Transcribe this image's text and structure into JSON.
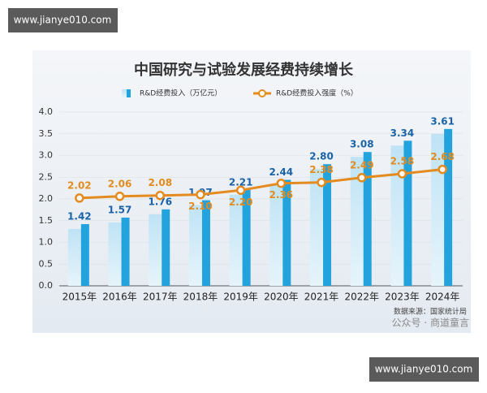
{
  "watermark_top": "www.jianye010.com",
  "watermark_bottom": "www.jianye010.com",
  "chart_data": {
    "type": "bar-line",
    "title": "中国研究与试验发展经费持续增长",
    "categories": [
      "2015年",
      "2016年",
      "2017年",
      "2018年",
      "2019年",
      "2020年",
      "2021年",
      "2022年",
      "2023年",
      "2024年"
    ],
    "series": [
      {
        "name": "R&D经费投入（万亿元）",
        "type": "bar",
        "color": "#22a3dd",
        "values": [
          1.42,
          1.57,
          1.76,
          1.97,
          2.21,
          2.44,
          2.8,
          3.08,
          3.34,
          3.61
        ],
        "value_labels": [
          "1.42",
          "1.57",
          "1.76",
          "1.97",
          "2.21",
          "2.44",
          "2.80",
          "3.08",
          "3.34",
          "3.61"
        ]
      },
      {
        "name": "R&D经费投入强度（%）",
        "type": "line",
        "color": "#e38b1f",
        "values": [
          2.02,
          2.06,
          2.08,
          2.1,
          2.2,
          2.36,
          2.38,
          2.49,
          2.58,
          2.68
        ],
        "value_labels": [
          "2.02",
          "2.06",
          "2.08",
          "2.10",
          "2.20",
          "2.36",
          "2.38",
          "2.49",
          "2.58",
          "2.68"
        ]
      }
    ],
    "ylim": [
      0,
      4
    ],
    "yticks": [
      {
        "value": 0,
        "label": "0.0"
      },
      0.5,
      {
        "value": 1,
        "label": "1.0"
      },
      1.5,
      {
        "value": 2,
        "label": "2.0"
      },
      2.5,
      {
        "value": 3,
        "label": "3.0"
      },
      3.5,
      {
        "value": 4,
        "label": "4.0"
      }
    ],
    "source": "数据来源：国家统计局",
    "credit": "公众号 · 商道童言"
  }
}
